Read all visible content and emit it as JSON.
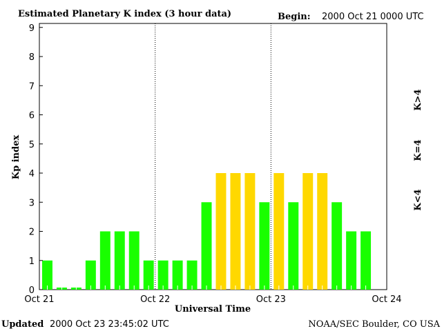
{
  "chart_data": {
    "type": "bar",
    "title": "Estimated Planetary K index (3 hour data)",
    "begin_label": "Begin:",
    "begin_value": "2000 Oct 21 0000 UTC",
    "xlabel": "Universal Time",
    "ylabel": "Kp index",
    "ylim": [
      0,
      9
    ],
    "yticks": [
      "0",
      "1",
      "2",
      "3",
      "4",
      "5",
      "6",
      "7",
      "8",
      "9"
    ],
    "xticks": [
      "Oct 21",
      "Oct 22",
      "Oct 23",
      "Oct 24"
    ],
    "interval_hours": 3,
    "values": [
      1,
      0,
      0,
      1,
      2,
      2,
      2,
      1,
      1,
      1,
      1,
      3,
      4,
      4,
      4,
      3,
      4,
      3,
      4,
      4,
      3,
      2,
      2
    ],
    "legend": [
      {
        "label": "K<4",
        "color": "#19ff00"
      },
      {
        "label": "K=4",
        "color": "#ffd800"
      },
      {
        "label": "K>4",
        "color": "#ff2000"
      }
    ]
  },
  "footer": {
    "updated_label": "Updated",
    "updated_value": "2000 Oct 23 23:45:02 UTC",
    "source": "NOAA/SEC Boulder, CO USA"
  }
}
